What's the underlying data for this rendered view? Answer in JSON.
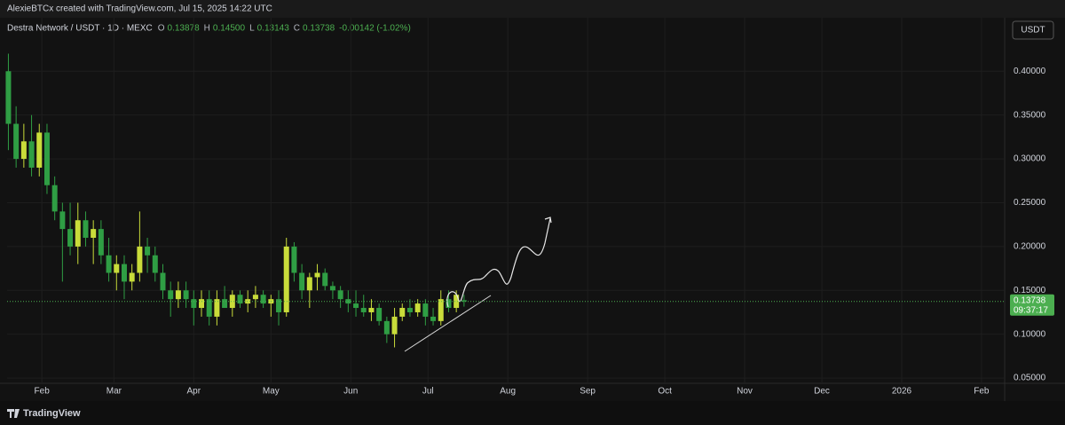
{
  "header": {
    "caption": "AlexieBTCx created with TradingView.com, Jul 15, 2025 14:22 UTC"
  },
  "footer": {
    "brand": "TradingView"
  },
  "chart_data": {
    "type": "candlestick",
    "symbol": "Destra Network / USDT · 1D · MEXC",
    "legend": {
      "open_label": "O",
      "open": "0.13878",
      "high_label": "H",
      "high": "0.14500",
      "low_label": "L",
      "low": "0.13143",
      "close_label": "C",
      "close": "0.13738",
      "change": "-0.00142 (-1.02%)"
    },
    "currency_button": "USDT",
    "last_price": {
      "value": 0.13738,
      "label": "0.13738"
    },
    "countdown": "09:37:17",
    "up_color": "#c9dc3a",
    "down_color": "#2f9e44",
    "xlim": [
      17.5,
      405
    ],
    "xticks": [
      {
        "value": 31,
        "label": "Feb"
      },
      {
        "value": 59,
        "label": "Mar"
      },
      {
        "value": 90,
        "label": "Apr"
      },
      {
        "value": 120,
        "label": "May"
      },
      {
        "value": 151,
        "label": "Jun"
      },
      {
        "value": 181,
        "label": "Jul"
      },
      {
        "value": 212,
        "label": "Aug"
      },
      {
        "value": 243,
        "label": "Sep"
      },
      {
        "value": 273,
        "label": "Oct"
      },
      {
        "value": 304,
        "label": "Nov"
      },
      {
        "value": 334,
        "label": "Dec"
      },
      {
        "value": 365,
        "label": "2026"
      },
      {
        "value": 396,
        "label": "Feb"
      }
    ],
    "ylim": [
      0.044,
      0.461
    ],
    "yticks": [
      {
        "value": 0.05,
        "label": "0.05000"
      },
      {
        "value": 0.1,
        "label": "0.10000"
      },
      {
        "value": 0.15,
        "label": "0.15000"
      },
      {
        "value": 0.2,
        "label": "0.20000"
      },
      {
        "value": 0.25,
        "label": "0.25000"
      },
      {
        "value": 0.3,
        "label": "0.30000"
      },
      {
        "value": 0.35,
        "label": "0.35000"
      },
      {
        "value": 0.4,
        "label": "0.40000"
      }
    ],
    "x": [
      18,
      21,
      24,
      27,
      30,
      33,
      36,
      39,
      42,
      45,
      48,
      51,
      54,
      57,
      60,
      63,
      66,
      69,
      72,
      75,
      78,
      81,
      84,
      87,
      90,
      93,
      96,
      99,
      102,
      105,
      108,
      111,
      114,
      117,
      120,
      123,
      126,
      129,
      132,
      135,
      138,
      141,
      144,
      147,
      150,
      153,
      156,
      159,
      162,
      165,
      168,
      171,
      174,
      177,
      180,
      183,
      186,
      189,
      192,
      195
    ],
    "open": [
      0.4,
      0.34,
      0.3,
      0.32,
      0.29,
      0.33,
      0.27,
      0.24,
      0.22,
      0.2,
      0.23,
      0.21,
      0.22,
      0.19,
      0.17,
      0.18,
      0.16,
      0.17,
      0.2,
      0.19,
      0.17,
      0.15,
      0.14,
      0.15,
      0.14,
      0.13,
      0.14,
      0.12,
      0.14,
      0.13,
      0.145,
      0.135,
      0.14,
      0.145,
      0.135,
      0.14,
      0.125,
      0.2,
      0.17,
      0.15,
      0.165,
      0.17,
      0.155,
      0.15,
      0.14,
      0.135,
      0.13,
      0.125,
      0.13,
      0.115,
      0.1,
      0.12,
      0.13,
      0.125,
      0.135,
      0.12,
      0.115,
      0.14,
      0.13,
      0.13878
    ],
    "high": [
      0.42,
      0.36,
      0.34,
      0.35,
      0.34,
      0.34,
      0.28,
      0.25,
      0.25,
      0.25,
      0.24,
      0.23,
      0.23,
      0.21,
      0.19,
      0.19,
      0.18,
      0.24,
      0.21,
      0.2,
      0.18,
      0.16,
      0.16,
      0.16,
      0.15,
      0.15,
      0.15,
      0.15,
      0.155,
      0.15,
      0.15,
      0.15,
      0.155,
      0.15,
      0.145,
      0.15,
      0.21,
      0.205,
      0.18,
      0.17,
      0.18,
      0.175,
      0.16,
      0.155,
      0.15,
      0.15,
      0.145,
      0.14,
      0.135,
      0.12,
      0.13,
      0.135,
      0.14,
      0.14,
      0.14,
      0.13,
      0.15,
      0.15,
      0.15,
      0.145
    ],
    "low": [
      0.31,
      0.29,
      0.29,
      0.28,
      0.28,
      0.26,
      0.23,
      0.16,
      0.19,
      0.18,
      0.2,
      0.18,
      0.18,
      0.16,
      0.15,
      0.14,
      0.15,
      0.16,
      0.17,
      0.16,
      0.14,
      0.12,
      0.13,
      0.13,
      0.11,
      0.12,
      0.11,
      0.11,
      0.13,
      0.12,
      0.13,
      0.125,
      0.13,
      0.13,
      0.12,
      0.11,
      0.12,
      0.16,
      0.14,
      0.13,
      0.15,
      0.15,
      0.14,
      0.13,
      0.125,
      0.12,
      0.12,
      0.115,
      0.11,
      0.09,
      0.085,
      0.115,
      0.12,
      0.12,
      0.11,
      0.11,
      0.11,
      0.125,
      0.125,
      0.13143
    ],
    "close": [
      0.34,
      0.3,
      0.32,
      0.29,
      0.33,
      0.27,
      0.24,
      0.22,
      0.2,
      0.23,
      0.21,
      0.22,
      0.19,
      0.17,
      0.18,
      0.16,
      0.17,
      0.2,
      0.19,
      0.17,
      0.15,
      0.14,
      0.15,
      0.14,
      0.13,
      0.14,
      0.12,
      0.14,
      0.13,
      0.145,
      0.135,
      0.14,
      0.145,
      0.135,
      0.14,
      0.125,
      0.2,
      0.17,
      0.15,
      0.165,
      0.17,
      0.155,
      0.15,
      0.14,
      0.135,
      0.13,
      0.125,
      0.13,
      0.115,
      0.1,
      0.12,
      0.13,
      0.125,
      0.135,
      0.12,
      0.115,
      0.14,
      0.13,
      0.145,
      0.13738
    ]
  }
}
